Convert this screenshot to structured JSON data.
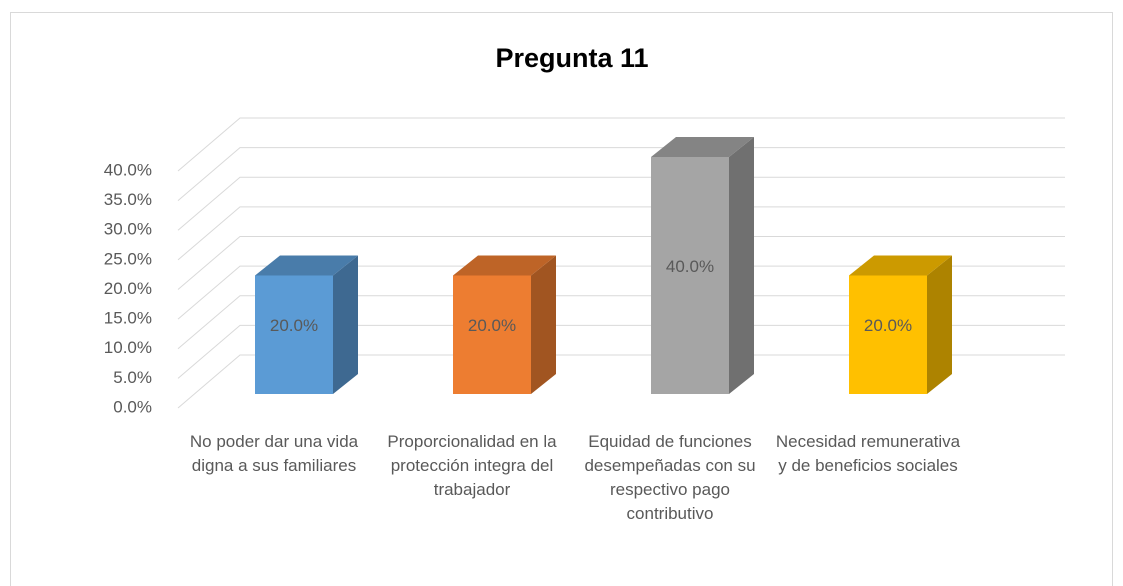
{
  "chart_data": {
    "type": "bar3d",
    "title": "Pregunta 11",
    "categories": [
      "No poder dar una vida digna a sus familiares",
      "Proporcionalidad en la protección integra del trabajador",
      "Equidad de funciones desempeñadas con su respectivo pago contributivo",
      "Necesidad remunerativa y de beneficios sociales"
    ],
    "series": [
      {
        "colors": [
          "#5b9bd5",
          "#ed7d31",
          "#a5a5a5",
          "#ffc000"
        ],
        "values": [
          20,
          20,
          40,
          20
        ],
        "value_labels": [
          "20.0%",
          "20.0%",
          "40.0%",
          "20.0%"
        ]
      }
    ],
    "ylim": [
      0,
      40
    ],
    "yticks": [
      {
        "value": 0,
        "label": "0.0%"
      },
      {
        "value": 5,
        "label": "5.0%"
      },
      {
        "value": 10,
        "label": "10.0%"
      },
      {
        "value": 15,
        "label": "15.0%"
      },
      {
        "value": 20,
        "label": "20.0%"
      },
      {
        "value": 25,
        "label": "25.0%"
      },
      {
        "value": 30,
        "label": "30.0%"
      },
      {
        "value": 35,
        "label": "35.0%"
      },
      {
        "value": 40,
        "label": "40.0%"
      }
    ],
    "grid": true
  }
}
